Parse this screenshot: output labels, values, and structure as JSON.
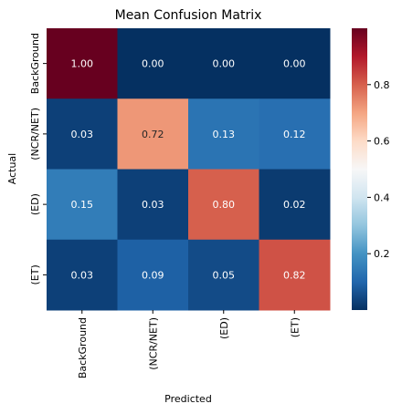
{
  "chart_data": {
    "type": "heatmap",
    "title": "Mean Confusion Matrix",
    "xlabel": "Predicted",
    "ylabel": "Actual",
    "x_categories": [
      "BackGround",
      "(NCR/NET)",
      "(ED)",
      "(ET)"
    ],
    "y_categories": [
      "BackGround",
      "(NCR/NET)",
      "(ED)",
      "(ET)"
    ],
    "values": [
      [
        1.0,
        0.0,
        0.0,
        0.0
      ],
      [
        0.03,
        0.72,
        0.13,
        0.12
      ],
      [
        0.15,
        0.03,
        0.8,
        0.02
      ],
      [
        0.03,
        0.09,
        0.05,
        0.82
      ]
    ],
    "value_format": "0.00",
    "colormap": "RdBu_r",
    "colorbar": {
      "range": [
        0,
        1
      ],
      "ticks": [
        0.2,
        0.4,
        0.6,
        0.8
      ],
      "tick_labels": [
        "0.2",
        "0.4",
        "0.6",
        "0.8"
      ]
    },
    "grid": false
  }
}
